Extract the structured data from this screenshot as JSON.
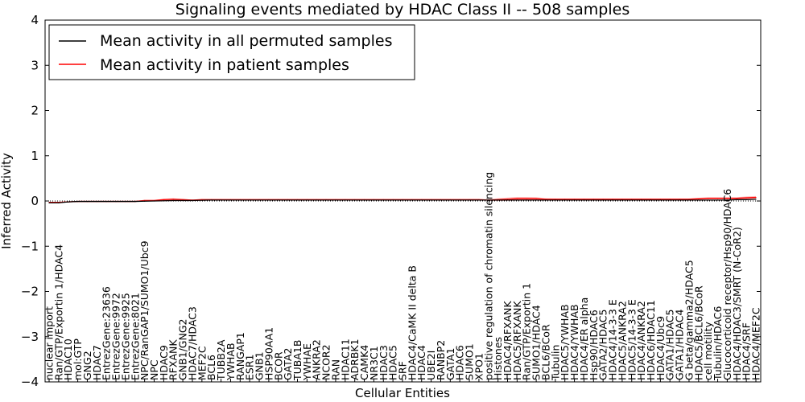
{
  "chart_data": {
    "type": "line",
    "title": "Signaling events mediated by HDAC Class II -- 508 samples",
    "xlabel": "Cellular Entities",
    "ylabel": "Inferred Activity",
    "ylim": [
      -4,
      4
    ],
    "yticks": [
      -4,
      -3,
      -2,
      -1,
      0,
      1,
      2,
      3,
      4
    ],
    "ytick_labels": [
      "−4",
      "−3",
      "−2",
      "−1",
      "0",
      "1",
      "2",
      "3",
      "4"
    ],
    "grid": false,
    "legend_position": "top-left",
    "categories": [
      "nuclear import",
      "Ran/GTP/Exportin 1/HDAC4",
      "HDAC10",
      "mol:GTP",
      "GNG2",
      "HDAC7",
      "EntrezGene:23636",
      "EntrezGene:9972",
      "EntrezGene:9925",
      "EntrezGene:8021",
      "NPC/RanGAP1/SUMO1/Ubc9",
      "NPC",
      "HDAC9",
      "RFXANK",
      "GNB1/GNG2",
      "HDAC7/HDAC3",
      "MEF2C",
      "BCL6",
      "TUBB2A",
      "YWHAB",
      "RANGAP1",
      "ESR1",
      "GNB1",
      "HSP90AA1",
      "BCOR",
      "GATA2",
      "TUBA1B",
      "YWHAE",
      "ANKRA2",
      "NCOR2",
      "RAN",
      "HDAC11",
      "ADRBK1",
      "CAMK4",
      "NR3C1",
      "HDAC3",
      "HDAC5",
      "SRF",
      "HDAC4/CaMK II delta B",
      "HDAC4",
      "UBE2I",
      "RANBP2",
      "GATA1",
      "HDAC6",
      "SUMO1",
      "XPO1",
      "positive regulation of chromatin silencing",
      "Histones",
      "HDAC4/RFXANK",
      "HDAC5/RFXANK",
      "Ran/GTP/Exportin 1",
      "SUMO1/HDAC4",
      "BCL6/BCoR",
      "Tubulin",
      "HDAC5/YWHAB",
      "HDAC4/YWHAB",
      "HDAC4/ER alpha",
      "Hsp90/HDAC6",
      "GATA2/HDAC5",
      "HDAC4/14-3-3 E",
      "HDAC5/ANKRA2",
      "HDAC5/14-3-3 E",
      "HDAC4/ANKRA2",
      "HDAC6/HDAC11",
      "HDAC4/Ubc9",
      "GATA1/HDAC5",
      "GATA1/HDAC4",
      "G beta/gamma2/HDAC5",
      "HDAC5/BCL6/BCoR",
      "cell motility",
      "Tubulin/HDAC6",
      "Glucocorticoid receptor/Hsp90/HDAC6",
      "HDAC4/HDAC3/SMRT (N-CoR2)",
      "HDAC4/SRF",
      "HDAC4/MEF2C"
    ],
    "series": [
      {
        "name": "Mean activity in all permuted samples",
        "color": "#000000",
        "values": [
          -0.04,
          -0.04,
          -0.02,
          -0.01,
          -0.01,
          -0.01,
          -0.01,
          -0.01,
          -0.01,
          -0.01,
          -0.005,
          0,
          0.005,
          0.01,
          0.01,
          0.01,
          0.015,
          0.02,
          0.02,
          0.02,
          0.02,
          0.02,
          0.02,
          0.02,
          0.02,
          0.02,
          0.02,
          0.02,
          0.02,
          0.02,
          0.02,
          0.02,
          0.02,
          0.02,
          0.02,
          0.02,
          0.02,
          0.02,
          0.02,
          0.02,
          0.02,
          0.02,
          0.02,
          0.02,
          0.02,
          0.02,
          0.02,
          0.02,
          0.02,
          0.02,
          0.02,
          0.02,
          0.02,
          0.02,
          0.02,
          0.02,
          0.02,
          0.02,
          0.02,
          0.02,
          0.02,
          0.02,
          0.02,
          0.02,
          0.02,
          0.02,
          0.02,
          0.02,
          0.02,
          0.02,
          0.02,
          0.02,
          0.03,
          0.03,
          0.04
        ]
      },
      {
        "name": "Mean activity in patient samples",
        "color": "#ff0000",
        "values": [
          -0.03,
          -0.03,
          -0.02,
          -0.01,
          -0.01,
          -0.01,
          -0.01,
          -0.01,
          -0.01,
          -0.01,
          0.01,
          0.01,
          0.03,
          0.04,
          0.03,
          0.02,
          0.03,
          0.03,
          0.03,
          0.03,
          0.03,
          0.03,
          0.03,
          0.03,
          0.03,
          0.03,
          0.03,
          0.03,
          0.03,
          0.03,
          0.03,
          0.03,
          0.03,
          0.03,
          0.03,
          0.03,
          0.03,
          0.03,
          0.03,
          0.03,
          0.03,
          0.03,
          0.03,
          0.03,
          0.03,
          0.03,
          0.02,
          0.03,
          0.04,
          0.05,
          0.05,
          0.05,
          0.04,
          0.04,
          0.04,
          0.04,
          0.04,
          0.04,
          0.04,
          0.04,
          0.04,
          0.04,
          0.04,
          0.04,
          0.04,
          0.04,
          0.04,
          0.04,
          0.05,
          0.06,
          0.06,
          0.06,
          0.06,
          0.07,
          0.08
        ]
      }
    ],
    "band": {
      "color": "#ff8080",
      "half_width": [
        0.01,
        0.01,
        0.01,
        0.01,
        0.01,
        0.01,
        0.01,
        0.01,
        0.01,
        0.01,
        0.015,
        0.015,
        0.02,
        0.02,
        0.015,
        0.01,
        0.01,
        0.01,
        0.01,
        0.01,
        0.01,
        0.01,
        0.01,
        0.01,
        0.01,
        0.01,
        0.01,
        0.01,
        0.01,
        0.01,
        0.01,
        0.01,
        0.01,
        0.01,
        0.01,
        0.01,
        0.01,
        0.01,
        0.01,
        0.01,
        0.01,
        0.01,
        0.01,
        0.01,
        0.01,
        0.01,
        0.02,
        0.03,
        0.035,
        0.04,
        0.04,
        0.035,
        0.02,
        0.015,
        0.015,
        0.015,
        0.015,
        0.015,
        0.015,
        0.015,
        0.015,
        0.015,
        0.015,
        0.015,
        0.015,
        0.015,
        0.015,
        0.015,
        0.02,
        0.025,
        0.025,
        0.025,
        0.025,
        0.03,
        0.03
      ]
    }
  }
}
